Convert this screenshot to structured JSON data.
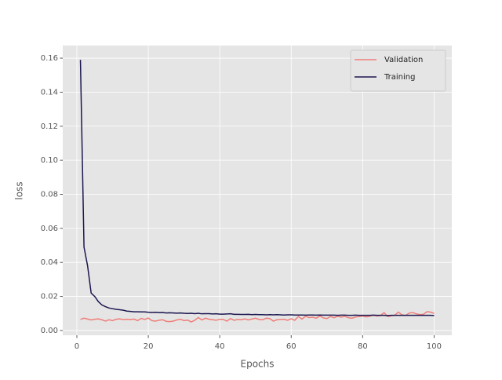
{
  "chart_data": {
    "type": "line",
    "xlabel": "Epochs",
    "ylabel": "loss",
    "x": [
      1,
      2,
      3,
      4,
      5,
      6,
      7,
      8,
      9,
      10,
      11,
      12,
      13,
      14,
      15,
      16,
      17,
      18,
      19,
      20,
      21,
      22,
      23,
      24,
      25,
      26,
      27,
      28,
      29,
      30,
      31,
      32,
      33,
      34,
      35,
      36,
      37,
      38,
      39,
      40,
      41,
      42,
      43,
      44,
      45,
      46,
      47,
      48,
      49,
      50,
      51,
      52,
      53,
      54,
      55,
      56,
      57,
      58,
      59,
      60,
      61,
      62,
      63,
      64,
      65,
      66,
      67,
      68,
      69,
      70,
      71,
      72,
      73,
      74,
      75,
      76,
      77,
      78,
      79,
      80,
      81,
      82,
      83,
      84,
      85,
      86,
      87,
      88,
      89,
      90,
      91,
      92,
      93,
      94,
      95,
      96,
      97,
      98,
      99,
      100
    ],
    "series": [
      {
        "name": "Validation",
        "color": "#f07f7a",
        "values": [
          0.0065,
          0.0072,
          0.0067,
          0.0062,
          0.0066,
          0.0068,
          0.0063,
          0.0055,
          0.0063,
          0.0058,
          0.0066,
          0.0068,
          0.0064,
          0.0066,
          0.0064,
          0.0067,
          0.0058,
          0.0071,
          0.0065,
          0.0073,
          0.0058,
          0.0055,
          0.006,
          0.0063,
          0.0054,
          0.0052,
          0.0055,
          0.0062,
          0.0066,
          0.0058,
          0.0061,
          0.005,
          0.006,
          0.0076,
          0.0062,
          0.0072,
          0.0066,
          0.0063,
          0.006,
          0.0066,
          0.0065,
          0.0055,
          0.007,
          0.006,
          0.0065,
          0.0063,
          0.0068,
          0.0062,
          0.0067,
          0.0072,
          0.0065,
          0.0063,
          0.0072,
          0.007,
          0.0055,
          0.0063,
          0.0065,
          0.0066,
          0.006,
          0.0069,
          0.006,
          0.0082,
          0.0067,
          0.0083,
          0.0076,
          0.0078,
          0.0072,
          0.0085,
          0.0074,
          0.007,
          0.0082,
          0.0075,
          0.0084,
          0.0078,
          0.0083,
          0.0075,
          0.0072,
          0.0079,
          0.0082,
          0.0085,
          0.008,
          0.0084,
          0.009,
          0.0085,
          0.0088,
          0.0105,
          0.0082,
          0.0086,
          0.009,
          0.0108,
          0.0092,
          0.0088,
          0.0102,
          0.0105,
          0.0098,
          0.0093,
          0.0095,
          0.011,
          0.0108,
          0.01
        ]
      },
      {
        "name": "Training",
        "color": "#1c1750",
        "values": [
          0.159,
          0.049,
          0.038,
          0.022,
          0.02,
          0.017,
          0.015,
          0.014,
          0.0132,
          0.0128,
          0.0124,
          0.0122,
          0.0119,
          0.0114,
          0.0112,
          0.011,
          0.011,
          0.0109,
          0.0109,
          0.0107,
          0.0106,
          0.0107,
          0.0105,
          0.0106,
          0.0103,
          0.0104,
          0.0103,
          0.0102,
          0.0103,
          0.0101,
          0.01,
          0.0101,
          0.0099,
          0.0101,
          0.0098,
          0.0099,
          0.0099,
          0.0097,
          0.0098,
          0.0096,
          0.0096,
          0.0097,
          0.0098,
          0.0095,
          0.0095,
          0.0094,
          0.0094,
          0.0095,
          0.0093,
          0.0094,
          0.0093,
          0.0093,
          0.0092,
          0.0093,
          0.0092,
          0.0093,
          0.0092,
          0.0091,
          0.0092,
          0.0092,
          0.0091,
          0.0091,
          0.0091,
          0.009,
          0.0091,
          0.0091,
          0.009,
          0.0091,
          0.009,
          0.009,
          0.009,
          0.009,
          0.0089,
          0.009,
          0.009,
          0.0089,
          0.0089,
          0.009,
          0.0089,
          0.0089,
          0.0089,
          0.0089,
          0.009,
          0.0089,
          0.0089,
          0.0089,
          0.0088,
          0.0089,
          0.0089,
          0.0089,
          0.0089,
          0.0089,
          0.0089,
          0.0089,
          0.0089,
          0.0089,
          0.0089,
          0.0089,
          0.0089,
          0.0088
        ]
      }
    ],
    "xlim": [
      -3.95,
      104.95
    ],
    "xticks": [
      0,
      20,
      40,
      60,
      80,
      100
    ],
    "ylim": [
      -0.0028,
      0.1674
    ],
    "yticks": [
      {
        "value": 0,
        "label": "0.00"
      },
      {
        "value": 0.02,
        "label": "0.02"
      },
      {
        "value": 0.04,
        "label": "0.04"
      },
      {
        "value": 0.06,
        "label": "0.06"
      },
      {
        "value": 0.08,
        "label": "0.08"
      },
      {
        "value": 0.1,
        "label": "0.10"
      },
      {
        "value": 0.12,
        "label": "0.12"
      },
      {
        "value": 0.14,
        "label": "0.14"
      },
      {
        "value": 0.16,
        "label": "0.16"
      }
    ],
    "grid": true,
    "legend": "upper-right"
  }
}
